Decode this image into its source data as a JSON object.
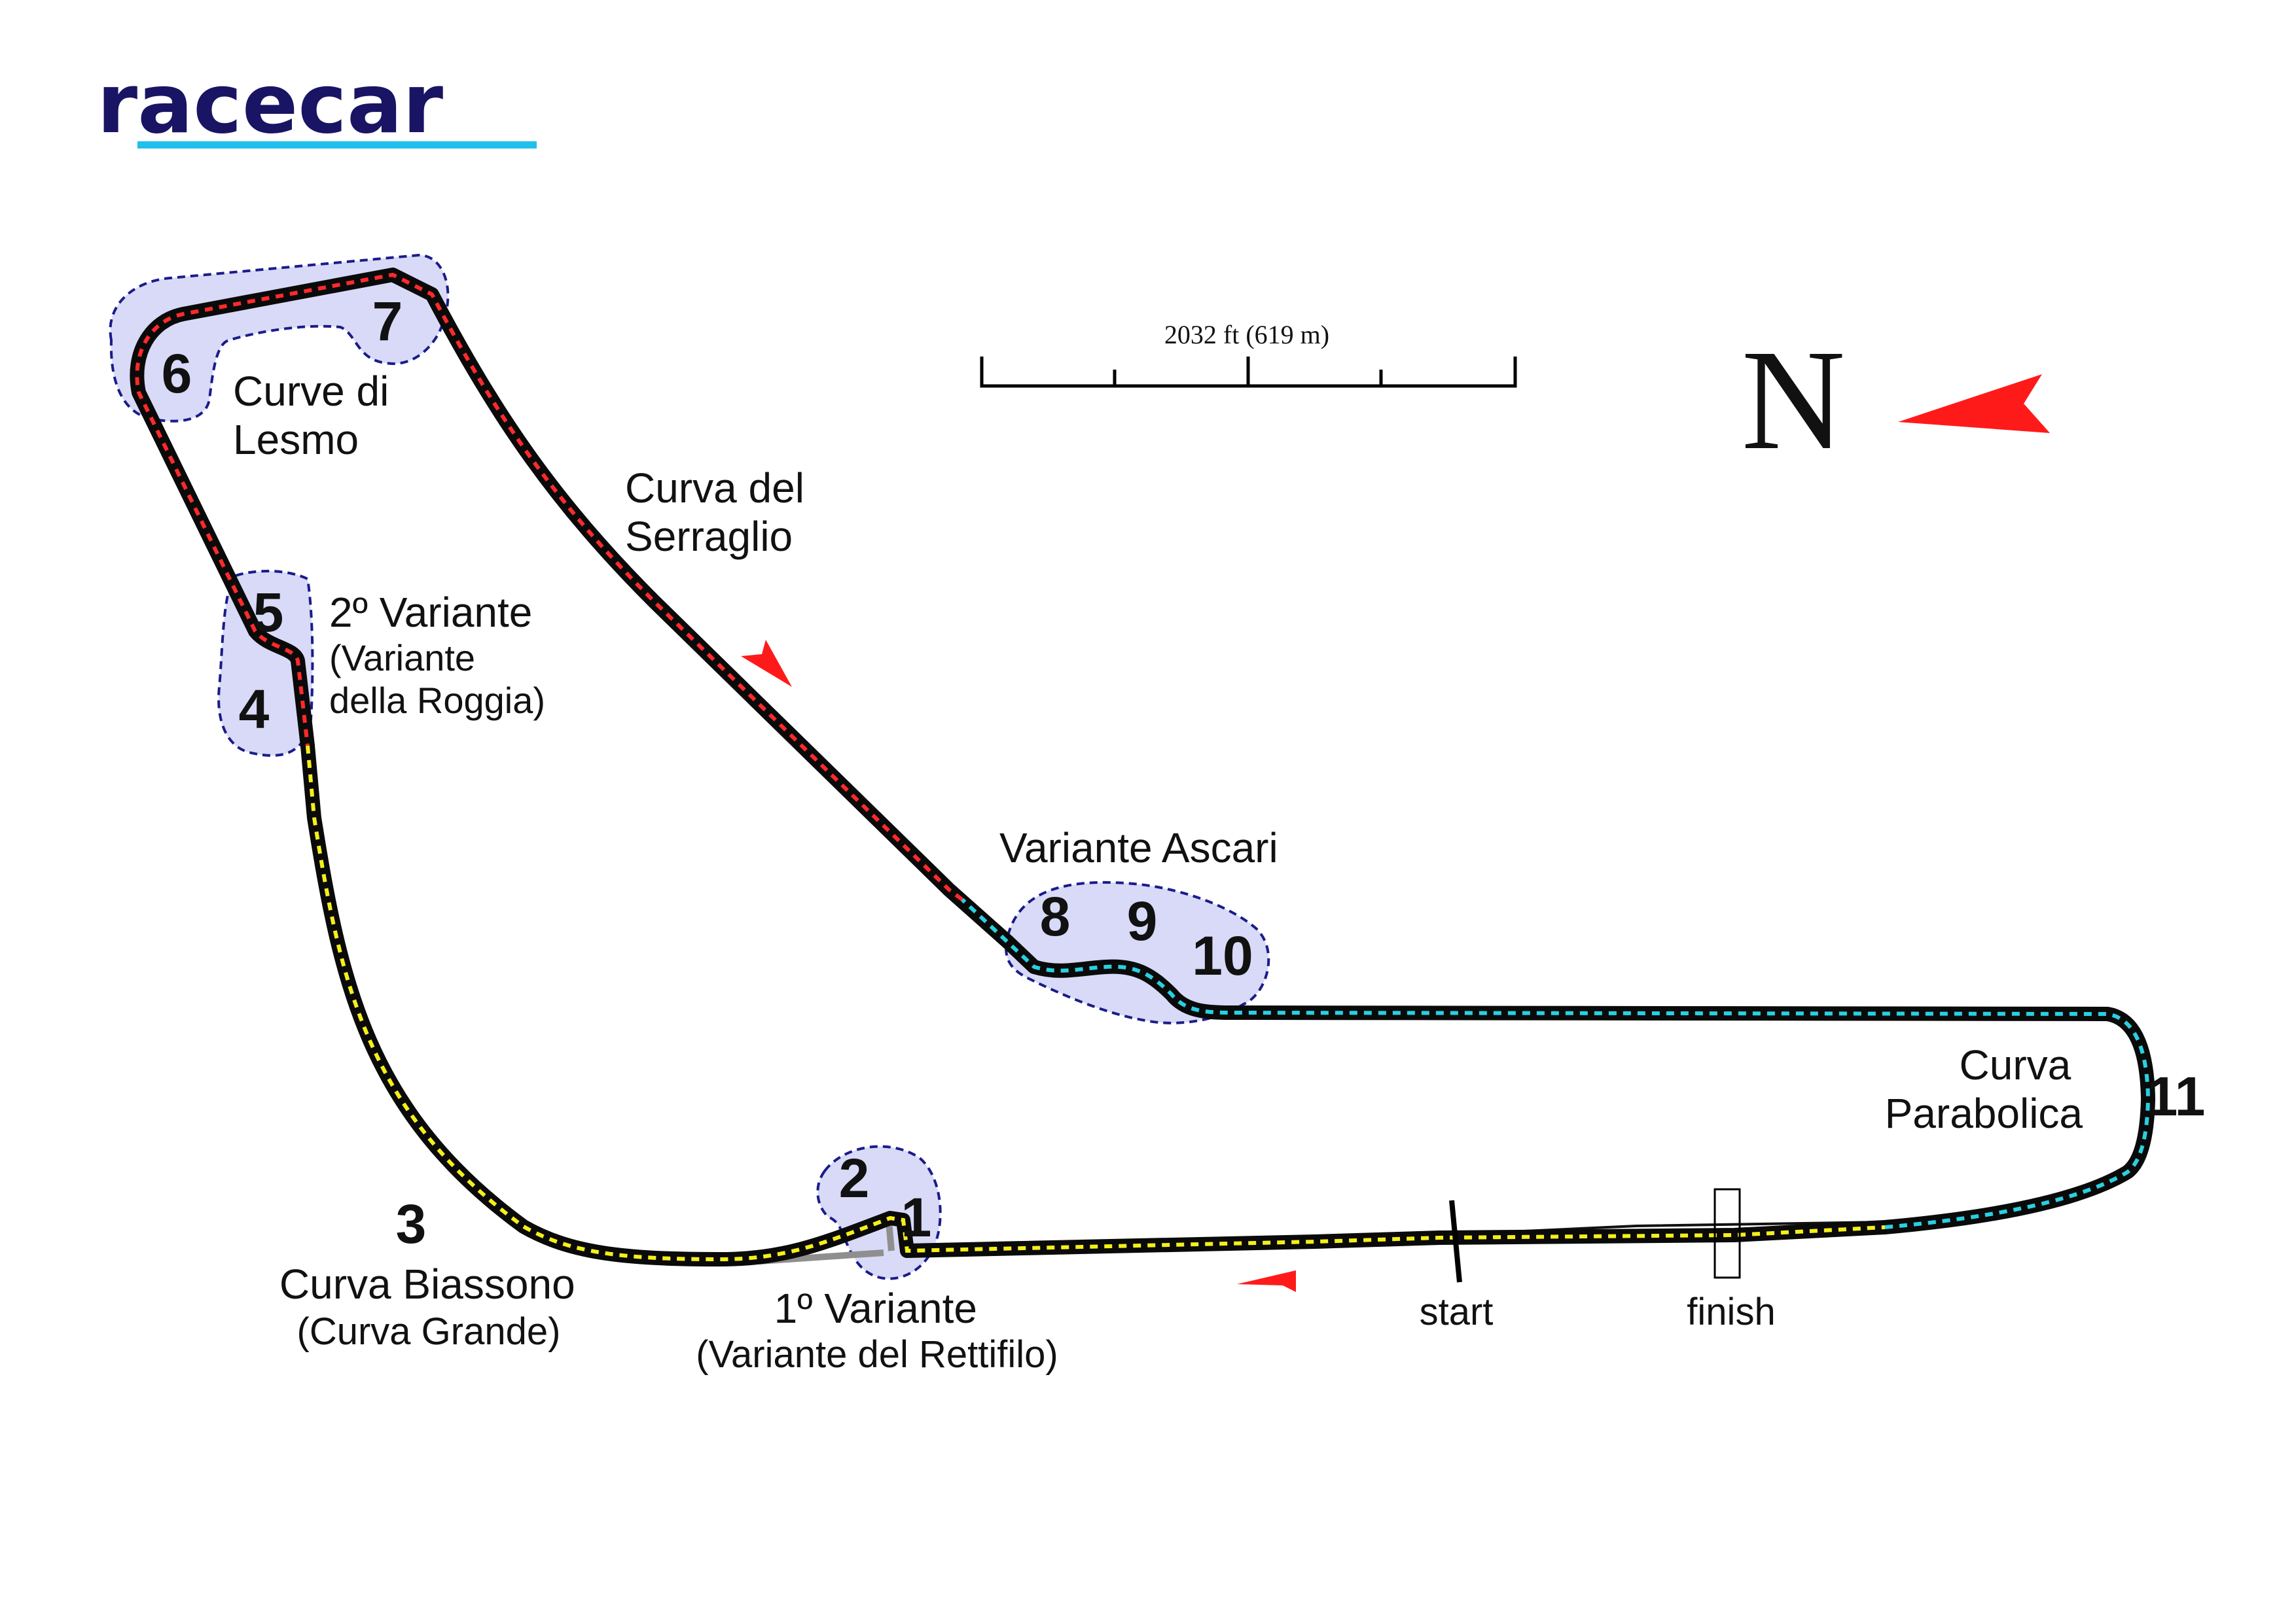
{
  "brand": {
    "name": "racecar",
    "color": "#1a1464",
    "underline_color": "#1fc0ea"
  },
  "scale_bar": {
    "label": "2032 ft (619 m)"
  },
  "compass": {
    "letter": "N",
    "arrow_color": "#ff1a1a"
  },
  "sector_colors": {
    "sector1": "#f5ef1a",
    "sector2": "#ff2a2a",
    "sector3": "#29d0e0"
  },
  "corner_highlight_color": "#d4d6f6",
  "corners": [
    {
      "id": "c1",
      "number": "1"
    },
    {
      "id": "c2",
      "number": "2"
    },
    {
      "id": "c3",
      "number": "3"
    },
    {
      "id": "c4",
      "number": "4"
    },
    {
      "id": "c5",
      "number": "5"
    },
    {
      "id": "c6",
      "number": "6"
    },
    {
      "id": "c7",
      "number": "7"
    },
    {
      "id": "c8",
      "number": "8"
    },
    {
      "id": "c9",
      "number": "9"
    },
    {
      "id": "c10",
      "number": "10"
    },
    {
      "id": "c11",
      "number": "11"
    }
  ],
  "labels": {
    "lesmo": [
      "Curve di",
      "Lesmo"
    ],
    "serraglio": [
      "Curva del",
      "Serraglio"
    ],
    "variante2": [
      "2º Variante",
      "(Variante",
      "della Roggia)"
    ],
    "ascari": "Variante Ascari",
    "parabolica": [
      "Curva",
      "Parabolica"
    ],
    "biassono": [
      "Curva Biassono",
      "(Curva Grande)"
    ],
    "variante1": [
      "1º Variante",
      "(Variante del Rettifilo)"
    ],
    "start": "start",
    "finish": "finish"
  }
}
